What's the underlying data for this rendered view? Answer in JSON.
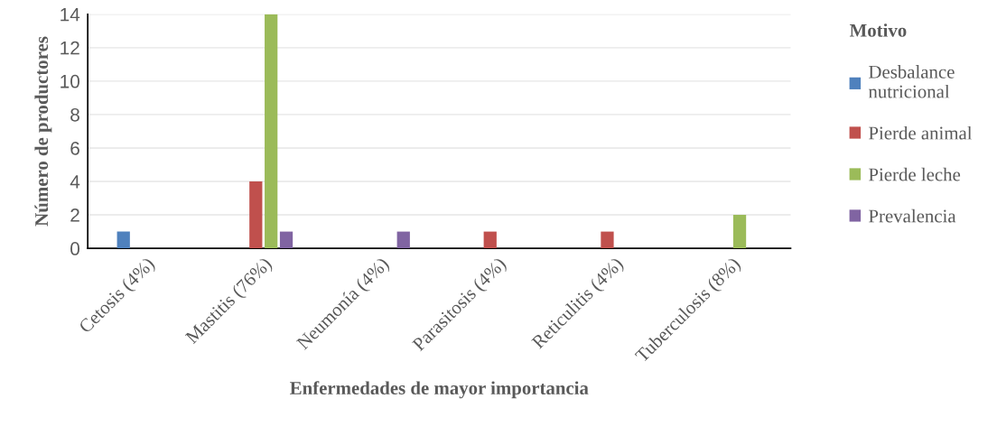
{
  "chart_data": {
    "type": "bar",
    "xlabel": "Enfermedades de mayor importancia",
    "ylabel": "Número de productores",
    "legend_title": "Motivo",
    "categories": [
      "Cetosis (4%)",
      "Mastitis (76%)",
      "Neumonía (4%)",
      "Parasitosis (4%)",
      "Reticulitis (4%)",
      "Tuberculosis (8%)"
    ],
    "series": [
      {
        "name": "Desbalance\nnutricional",
        "color": "#4f81bd",
        "values": [
          1,
          0,
          0,
          0,
          0,
          0
        ]
      },
      {
        "name": "Pierde animal",
        "color": "#c0504d",
        "values": [
          0,
          4,
          0,
          1,
          1,
          0
        ]
      },
      {
        "name": "Pierde leche",
        "color": "#9bbb59",
        "values": [
          0,
          14,
          0,
          0,
          0,
          2
        ]
      },
      {
        "name": "Prevalencia",
        "color": "#8064a2",
        "values": [
          0,
          1,
          1,
          0,
          0,
          0
        ]
      }
    ],
    "ylim": [
      0,
      14
    ],
    "yticks": [
      0,
      2,
      4,
      6,
      8,
      10,
      12,
      14
    ],
    "grid": "y",
    "legend": "right"
  }
}
